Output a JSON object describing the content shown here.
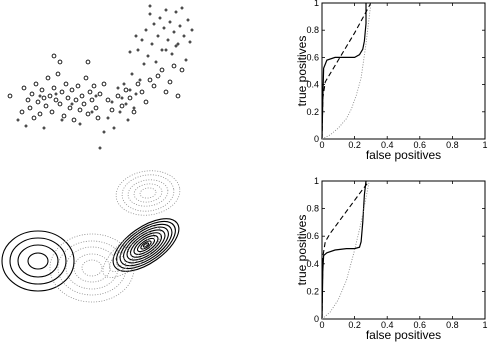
{
  "chart_data": [
    {
      "type": "scatter",
      "title": "",
      "series": [
        {
          "marker": "circle",
          "color": "#000000",
          "points": [
            [
              10,
              96
            ],
            [
              22,
              112
            ],
            [
              24,
              88
            ],
            [
              28,
              100
            ],
            [
              30,
              108
            ],
            [
              32,
              94
            ],
            [
              34,
              118
            ],
            [
              36,
              84
            ],
            [
              38,
              102
            ],
            [
              40,
              114
            ],
            [
              42,
              90
            ],
            [
              44,
              98
            ],
            [
              46,
              106
            ],
            [
              48,
              78
            ],
            [
              50,
              96
            ],
            [
              52,
              112
            ],
            [
              54,
              88
            ],
            [
              56,
              100
            ],
            [
              58,
              74
            ],
            [
              60,
              104
            ],
            [
              62,
              92
            ],
            [
              64,
              116
            ],
            [
              66,
              84
            ],
            [
              68,
              98
            ],
            [
              70,
              108
            ],
            [
              72,
              90
            ],
            [
              74,
              120
            ],
            [
              76,
              100
            ],
            [
              78,
              86
            ],
            [
              80,
              110
            ],
            [
              82,
              96
            ],
            [
              84,
              104
            ],
            [
              86,
              78
            ],
            [
              88,
              114
            ],
            [
              90,
              92
            ],
            [
              92,
              100
            ],
            [
              94,
              86
            ],
            [
              96,
              108
            ],
            [
              98,
              118
            ],
            [
              100,
              94
            ],
            [
              104,
              84
            ],
            [
              108,
              100
            ],
            [
              112,
              110
            ],
            [
              118,
              96
            ],
            [
              122,
              106
            ],
            [
              126,
              90
            ],
            [
              130,
              98
            ],
            [
              134,
              112
            ],
            [
              138,
              84
            ],
            [
              142,
              92
            ],
            [
              146,
              102
            ],
            [
              150,
              80
            ],
            [
              154,
              86
            ],
            [
              158,
              76
            ],
            [
              162,
              70
            ],
            [
              166,
              92
            ],
            [
              170,
              82
            ],
            [
              174,
              66
            ],
            [
              178,
              96
            ],
            [
              182,
              70
            ],
            [
              54,
              56
            ],
            [
              88,
              62
            ],
            [
              60,
              62
            ]
          ]
        },
        {
          "marker": "plus",
          "color": "#000000",
          "points": [
            [
              18,
              120
            ],
            [
              26,
              126
            ],
            [
              40,
              96
            ],
            [
              44,
              128
            ],
            [
              56,
              94
            ],
            [
              62,
              120
            ],
            [
              72,
              104
            ],
            [
              80,
              124
            ],
            [
              92,
              112
            ],
            [
              96,
              96
            ],
            [
              100,
              148
            ],
            [
              104,
              132
            ],
            [
              108,
              118
            ],
            [
              112,
              102
            ],
            [
              114,
              128
            ],
            [
              118,
              88
            ],
            [
              120,
              112
            ],
            [
              122,
              98
            ],
            [
              124,
              84
            ],
            [
              126,
              104
            ],
            [
              128,
              120
            ],
            [
              130,
              90
            ],
            [
              132,
              74
            ],
            [
              134,
              108
            ],
            [
              136,
              94
            ],
            [
              138,
              50
            ],
            [
              140,
              80
            ],
            [
              142,
              40
            ],
            [
              144,
              64
            ],
            [
              146,
              30
            ],
            [
              148,
              56
            ],
            [
              150,
              14
            ],
            [
              152,
              44
            ],
            [
              154,
              24
            ],
            [
              156,
              62
            ],
            [
              158,
              36
            ],
            [
              160,
              18
            ],
            [
              162,
              50
            ],
            [
              164,
              28
            ],
            [
              166,
              10
            ],
            [
              168,
              40
            ],
            [
              170,
              22
            ],
            [
              172,
              54
            ],
            [
              174,
              32
            ],
            [
              176,
              12
            ],
            [
              178,
              44
            ],
            [
              180,
              26
            ],
            [
              182,
              8
            ],
            [
              184,
              36
            ],
            [
              186,
              60
            ],
            [
              188,
              20
            ],
            [
              190,
              42
            ],
            [
              192,
              30
            ],
            [
              150,
              6
            ],
            [
              130,
              52
            ],
            [
              136,
              36
            ],
            [
              166,
              50
            ],
            [
              176,
              46
            ]
          ]
        }
      ]
    },
    {
      "type": "line",
      "xlabel": "false positives",
      "ylabel": "true positives",
      "xlim": [
        0,
        1
      ],
      "ylim": [
        0,
        1
      ],
      "xticks": [
        "0",
        "0.2",
        "0.4",
        "0.6",
        "0.8",
        "1"
      ],
      "yticks": [
        "0",
        "0.2",
        "0.4",
        "0.6",
        "0.8",
        "1"
      ],
      "series": [
        {
          "style": "solid",
          "x": [
            0,
            0.005,
            0.01,
            0.03,
            0.08,
            0.15,
            0.2,
            0.23,
            0.25,
            0.26,
            0.27,
            0.27
          ],
          "y": [
            0,
            0.3,
            0.52,
            0.58,
            0.6,
            0.6,
            0.6,
            0.62,
            0.66,
            0.72,
            0.85,
            1.0
          ]
        },
        {
          "style": "dashed",
          "x": [
            0,
            0.005,
            0.02,
            0.05,
            0.1,
            0.15,
            0.2,
            0.25,
            0.3
          ],
          "y": [
            0,
            0.3,
            0.42,
            0.48,
            0.58,
            0.68,
            0.78,
            0.89,
            1.0
          ]
        },
        {
          "style": "dotted",
          "x": [
            0,
            0.05,
            0.1,
            0.15,
            0.18,
            0.21,
            0.24,
            0.27,
            0.3
          ],
          "y": [
            0,
            0.03,
            0.08,
            0.15,
            0.22,
            0.32,
            0.45,
            0.7,
            1.0
          ]
        }
      ]
    },
    {
      "type": "contour",
      "title": "",
      "components": [
        {
          "style": "solid",
          "cx": 38,
          "cy": 261,
          "rx": [
            36,
            28,
            20,
            10
          ],
          "ry": [
            30,
            23,
            16,
            8
          ],
          "rotate": 0
        },
        {
          "style": "solid",
          "cx": 146,
          "cy": 245,
          "rx": [
            38,
            34,
            30,
            26,
            22,
            18,
            14,
            10,
            6,
            3
          ],
          "ry": [
            18,
            16,
            14,
            12,
            10,
            8,
            6,
            4,
            2.5,
            1.2
          ],
          "rotate": -35
        },
        {
          "style": "dotted",
          "cx": 92,
          "cy": 268,
          "rx": [
            42,
            34,
            26,
            18,
            10
          ],
          "ry": [
            34,
            27,
            21,
            14,
            8
          ],
          "rotate": 0
        },
        {
          "style": "dotted",
          "cx": 148,
          "cy": 193,
          "rx": [
            32,
            26,
            20,
            14,
            8
          ],
          "ry": [
            22,
            18,
            13,
            9,
            5
          ],
          "rotate": -8
        },
        {
          "style": "dotted",
          "cx": 132,
          "cy": 252,
          "rx": [
            36,
            28,
            20
          ],
          "ry": [
            14,
            10,
            6
          ],
          "rotate": -40
        }
      ]
    },
    {
      "type": "line",
      "xlabel": "false positives",
      "ylabel": "true positives",
      "xlim": [
        0,
        1
      ],
      "ylim": [
        0,
        1
      ],
      "xticks": [
        "0",
        "0.2",
        "0.4",
        "0.6",
        "0.8",
        "1"
      ],
      "yticks": [
        "0",
        "0.2",
        "0.4",
        "0.6",
        "0.8",
        "1"
      ],
      "series": [
        {
          "style": "solid",
          "x": [
            0,
            0.005,
            0.01,
            0.03,
            0.08,
            0.15,
            0.2,
            0.23,
            0.24,
            0.25,
            0.26,
            0.27
          ],
          "y": [
            0,
            0.35,
            0.46,
            0.48,
            0.5,
            0.51,
            0.51,
            0.52,
            0.56,
            0.7,
            0.9,
            1.0
          ]
        },
        {
          "style": "dashed",
          "x": [
            0,
            0.005,
            0.02,
            0.05,
            0.1,
            0.15,
            0.2,
            0.25,
            0.29
          ],
          "y": [
            0,
            0.45,
            0.56,
            0.62,
            0.7,
            0.78,
            0.86,
            0.94,
            1.0
          ]
        },
        {
          "style": "dotted",
          "x": [
            0,
            0.05,
            0.1,
            0.15,
            0.2,
            0.24,
            0.27,
            0.29
          ],
          "y": [
            0,
            0.05,
            0.14,
            0.28,
            0.5,
            0.7,
            0.88,
            1.0
          ]
        }
      ]
    }
  ]
}
